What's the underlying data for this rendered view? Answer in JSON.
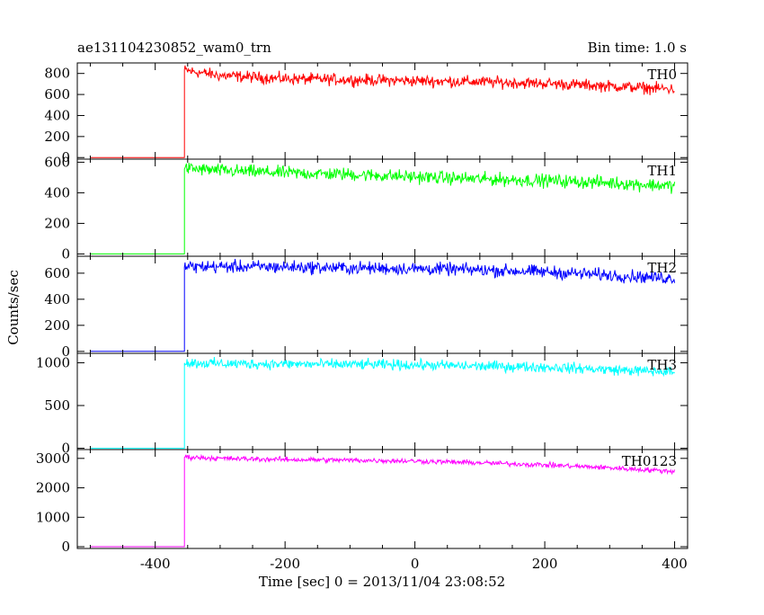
{
  "chart_data": {
    "type": "line",
    "title": "ae131104230852_wam0_trn",
    "bin_time_label": "Bin time: 1.0 s",
    "xlabel": "Time [sec] 0 = 2013/11/04 23:08:52",
    "ylabel": "Counts/sec",
    "xlim": [
      -520,
      420
    ],
    "x_ticks": [
      -400,
      -200,
      0,
      200,
      400
    ],
    "grid": false,
    "panels": [
      {
        "name": "TH0",
        "color": "#ff0000",
        "ylim": [
          -15,
          900
        ],
        "y_ticks": [
          0,
          200,
          400,
          600,
          800
        ],
        "x": [
          -500,
          -355,
          -355,
          -300,
          -200,
          -100,
          0,
          100,
          200,
          300,
          400
        ],
        "y": [
          0,
          0,
          830,
          780,
          750,
          740,
          730,
          720,
          705,
          680,
          650
        ],
        "noise": 45
      },
      {
        "name": "TH1",
        "color": "#00ff00",
        "ylim": [
          -15,
          620
        ],
        "y_ticks": [
          0,
          200,
          400,
          600
        ],
        "x": [
          -500,
          -355,
          -355,
          -300,
          -200,
          -100,
          0,
          100,
          200,
          300,
          400
        ],
        "y": [
          0,
          0,
          560,
          545,
          530,
          520,
          505,
          490,
          480,
          465,
          445
        ],
        "noise": 35
      },
      {
        "name": "TH2",
        "color": "#0000ff",
        "ylim": [
          -15,
          730
        ],
        "y_ticks": [
          0,
          200,
          400,
          600
        ],
        "x": [
          -500,
          -355,
          -355,
          -300,
          -200,
          -100,
          0,
          100,
          200,
          300,
          400
        ],
        "y": [
          0,
          0,
          650,
          650,
          648,
          640,
          635,
          625,
          610,
          585,
          560
        ],
        "noise": 40
      },
      {
        "name": "TH3",
        "color": "#00ffff",
        "ylim": [
          -15,
          1110
        ],
        "y_ticks": [
          0,
          500,
          1000
        ],
        "x": [
          -500,
          -355,
          -355,
          -300,
          -200,
          -100,
          0,
          100,
          200,
          300,
          400
        ],
        "y": [
          0,
          0,
          1000,
          990,
          985,
          980,
          975,
          960,
          950,
          920,
          890
        ],
        "noise": 50
      },
      {
        "name": "TH0123",
        "color": "#ff00ff",
        "ylim": [
          -60,
          3300
        ],
        "y_ticks": [
          0,
          1000,
          2000,
          3000
        ],
        "x": [
          -500,
          -355,
          -355,
          -300,
          -200,
          -100,
          0,
          100,
          200,
          300,
          400
        ],
        "y": [
          0,
          0,
          3050,
          3000,
          2960,
          2940,
          2910,
          2850,
          2780,
          2680,
          2560
        ],
        "noise": 70
      }
    ]
  }
}
